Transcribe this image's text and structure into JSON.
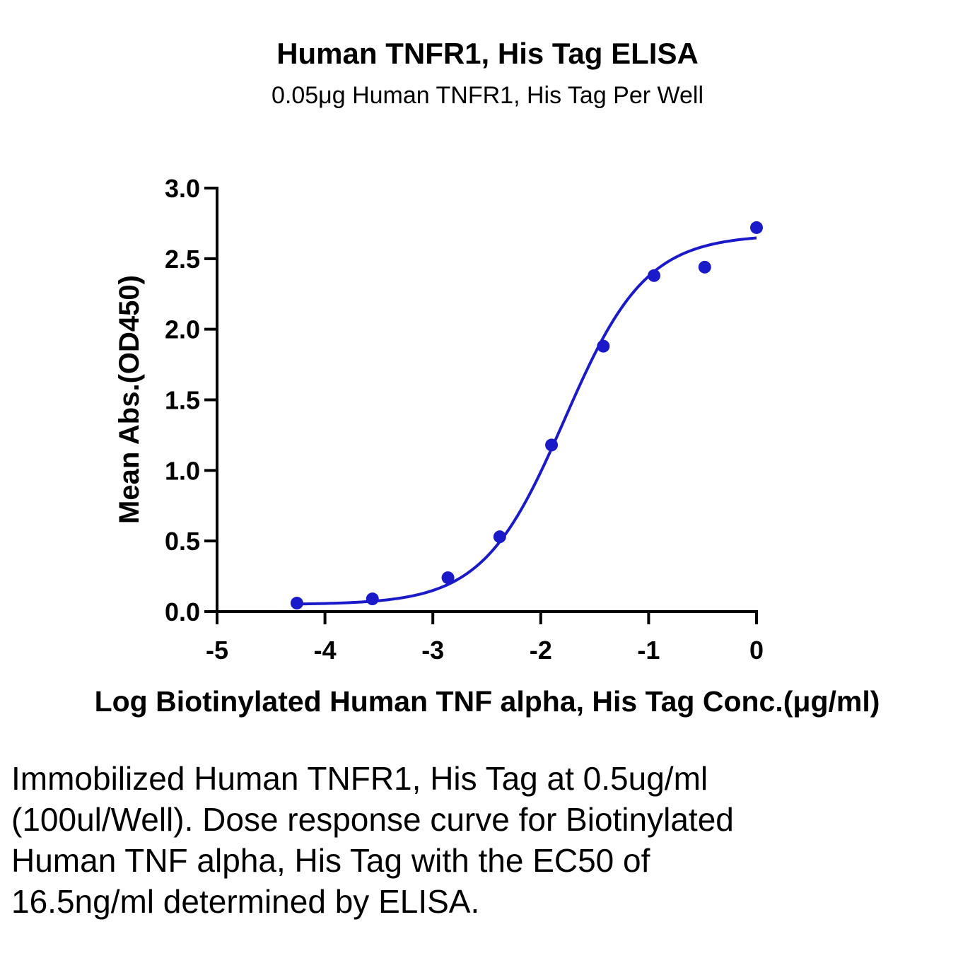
{
  "chart_data": {
    "type": "scatter",
    "title": "Human TNFR1, His Tag ELISA",
    "subtitle": "0.05μg Human TNFR1, His Tag Per Well",
    "xlabel": "Log Biotinylated Human TNF alpha, His Tag Conc.(μg/ml)",
    "ylabel": "Mean Abs.(OD450)",
    "xlim": [
      -5,
      0
    ],
    "ylim": [
      0,
      3.0
    ],
    "x_ticks": [
      -5,
      -4,
      -3,
      -2,
      -1,
      0
    ],
    "x_tick_labels": [
      "-5",
      "-4",
      "-3",
      "-2",
      "-1",
      "0"
    ],
    "y_ticks": [
      0,
      0.5,
      1.0,
      1.5,
      2.0,
      2.5,
      3.0
    ],
    "y_tick_labels": [
      "0.0",
      "0.5",
      "1.0",
      "1.5",
      "2.0",
      "2.5",
      "3.0"
    ],
    "grid": false,
    "legend": "none",
    "series": [
      {
        "x": [
          -4.26,
          -3.56,
          -2.86,
          -2.38,
          -1.9,
          -1.42,
          -0.95,
          -0.48,
          0.0
        ],
        "y": [
          0.06,
          0.09,
          0.24,
          0.53,
          1.18,
          1.88,
          2.38,
          2.44,
          2.72
        ],
        "color": "#1a1ac8",
        "fit": {
          "model": "4PL",
          "bottom": 0.05,
          "top": 2.67,
          "logEC50": -1.78,
          "hill": 1.15
        }
      }
    ]
  },
  "caption": "Immobilized Human TNFR1, His Tag at 0.5ug/ml (100ul/Well). Dose response curve for Biotinylated Human TNF alpha, His Tag with the EC50 of 16.5ng/ml determined by ELISA."
}
